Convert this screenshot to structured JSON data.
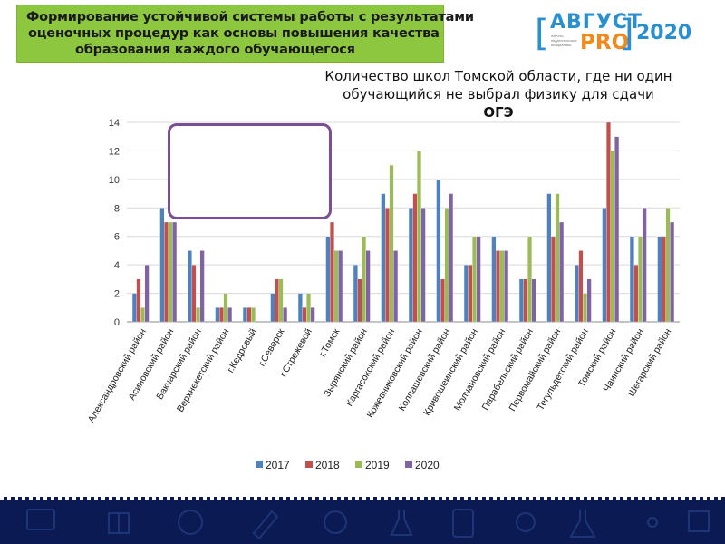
{
  "header": {
    "lines": [
      "Формирование устойчивой системы работы с результатами",
      "оценочных процедур как основы повышения качества",
      "образования каждого обучающегося"
    ]
  },
  "logo": {
    "brand_word": "АВГУСТ",
    "brand_pro": "PRO",
    "year": "2020",
    "subtitle": "научно-педагогические инициативы"
  },
  "colors": {
    "header_bg": "#8dc63f",
    "brand_blue": "#2a8fd0",
    "brand_orange": "#f08a1c",
    "footer_bg": "#0b1a52",
    "frame": "#7b4f94"
  },
  "chart_data": {
    "type": "bar",
    "title": "Количество школ Томской области, где ни один обучающийся не выбрал физику для сдачи ОГЭ",
    "title_lines": [
      "Количество школ Томской области, где ни один",
      "обучающийся не выбрал физику для сдачи",
      "ОГЭ"
    ],
    "categories": [
      "Александровский район",
      "Асиновский район",
      "Бакчарский район",
      "Верхнекетский район",
      "г.Кедровый",
      "г.Северск",
      "г.Стрежевой",
      "г.Томск",
      "Зырянский район",
      "Каргасокский район",
      "Кожевниковский район",
      "Колпашевский район",
      "Кривошеинский район",
      "Молчановский район",
      "Парабельский район",
      "Первомайский район",
      "Тегульдетский район",
      "Томский район",
      "Чаинский район",
      "Шегарский район"
    ],
    "series": [
      {
        "name": "2017",
        "color": "#4f81bd",
        "values": [
          2,
          8,
          5,
          1,
          1,
          2,
          2,
          6,
          4,
          9,
          8,
          10,
          4,
          6,
          3,
          9,
          4,
          8,
          6,
          6
        ]
      },
      {
        "name": "2018",
        "color": "#c0504d",
        "values": [
          3,
          7,
          4,
          1,
          1,
          3,
          1,
          7,
          3,
          8,
          9,
          3,
          4,
          5,
          3,
          6,
          5,
          14,
          4,
          6
        ]
      },
      {
        "name": "2019",
        "color": "#9bbb59",
        "values": [
          1,
          7,
          1,
          2,
          1,
          3,
          2,
          5,
          6,
          11,
          12,
          8,
          6,
          5,
          6,
          9,
          2,
          12,
          6,
          8
        ]
      },
      {
        "name": "2020",
        "color": "#8064a2",
        "values": [
          4,
          7,
          5,
          1,
          0,
          1,
          1,
          5,
          5,
          5,
          8,
          9,
          6,
          5,
          3,
          7,
          3,
          13,
          8,
          7
        ]
      }
    ],
    "ylim": [
      0,
      14
    ],
    "yticks": [
      0,
      2,
      4,
      6,
      8,
      10,
      12,
      14
    ],
    "grid": true,
    "legend": "bottom"
  }
}
